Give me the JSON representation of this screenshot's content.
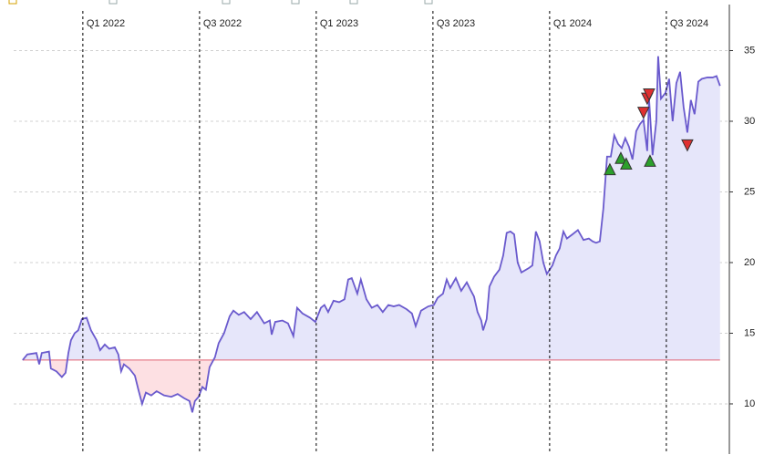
{
  "chart_data": {
    "type": "line",
    "x": [
      2021.742,
      2021.762,
      2021.801,
      2021.813,
      2021.824,
      2021.855,
      2021.863,
      2021.887,
      2021.91,
      2021.926,
      2021.938,
      2021.949,
      2021.965,
      2021.98,
      2021.996,
      2022.016,
      2022.035,
      2022.059,
      2022.074,
      2022.094,
      2022.113,
      2022.137,
      2022.152,
      2022.164,
      2022.176,
      2022.199,
      2022.223,
      2022.238,
      2022.254,
      2022.27,
      2022.293,
      2022.316,
      2022.348,
      2022.379,
      2022.406,
      2022.434,
      2022.457,
      2022.469,
      2022.48,
      2022.496,
      2022.512,
      2022.527,
      2022.543,
      2022.566,
      2022.582,
      2022.605,
      2022.629,
      2022.645,
      2022.668,
      2022.691,
      2022.719,
      2022.746,
      2022.777,
      2022.801,
      2022.809,
      2022.824,
      2022.855,
      2022.879,
      2022.902,
      2022.918,
      2022.941,
      2022.973,
      2022.996,
      2023.02,
      2023.035,
      2023.051,
      2023.074,
      2023.098,
      2023.121,
      2023.137,
      2023.152,
      2023.176,
      2023.191,
      2023.215,
      2023.238,
      2023.262,
      2023.285,
      2023.309,
      2023.332,
      2023.355,
      2023.387,
      2023.41,
      2023.426,
      2023.449,
      2023.48,
      2023.504,
      2023.52,
      2023.543,
      2023.559,
      2023.574,
      2023.598,
      2023.621,
      2023.645,
      2023.66,
      2023.676,
      2023.691,
      2023.707,
      2023.715,
      2023.73,
      2023.742,
      2023.762,
      2023.785,
      2023.801,
      2023.816,
      2023.832,
      2023.848,
      2023.863,
      2023.879,
      2023.91,
      2023.926,
      2023.941,
      2023.957,
      2023.973,
      2023.988,
      2024.012,
      2024.027,
      2024.043,
      2024.059,
      2024.074,
      2024.098,
      2024.121,
      2024.145,
      2024.168,
      2024.184,
      2024.199,
      2024.215,
      2024.23,
      2024.246,
      2024.262,
      2024.277,
      2024.293,
      2024.309,
      2024.324,
      2024.34,
      2024.355,
      2024.371,
      2024.387,
      2024.402,
      2024.418,
      2024.426,
      2024.441,
      2024.457,
      2024.465,
      2024.477,
      2024.496,
      2024.512,
      2024.527,
      2024.543,
      2024.559,
      2024.574,
      2024.59,
      2024.605,
      2024.621,
      2024.637,
      2024.652,
      2024.676,
      2024.699,
      2024.715,
      2024.73
    ],
    "series": [
      {
        "color": "#6a5acd",
        "values": [
          13.1,
          13.5,
          13.6,
          12.8,
          13.6,
          13.7,
          12.5,
          12.3,
          11.9,
          12.2,
          13.6,
          14.5,
          15.0,
          15.2,
          16.0,
          16.1,
          15.2,
          14.5,
          13.8,
          14.2,
          13.9,
          14.0,
          13.5,
          12.3,
          12.8,
          12.5,
          12.0,
          11.0,
          10.0,
          10.8,
          10.6,
          10.9,
          10.6,
          10.5,
          10.7,
          10.4,
          10.2,
          9.4,
          10.2,
          10.5,
          11.2,
          11.0,
          12.6,
          13.3,
          14.3,
          15.0,
          16.2,
          16.6,
          16.3,
          16.5,
          16.0,
          16.5,
          15.7,
          15.9,
          14.9,
          15.8,
          15.9,
          15.7,
          14.8,
          16.8,
          16.4,
          16.1,
          15.8,
          16.8,
          17.0,
          16.5,
          17.3,
          17.2,
          17.4,
          18.8,
          18.9,
          17.8,
          18.8,
          17.4,
          16.8,
          17.0,
          16.5,
          17.0,
          16.9,
          17.0,
          16.7,
          16.4,
          15.5,
          16.6,
          16.9,
          17.0,
          17.5,
          17.8,
          18.8,
          18.2,
          18.9,
          18.0,
          18.6,
          18.1,
          17.6,
          16.5,
          15.9,
          15.2,
          16.0,
          18.3,
          19.0,
          19.5,
          20.5,
          22.1,
          22.2,
          22.0,
          20.0,
          19.3,
          19.6,
          19.8,
          22.2,
          21.5,
          20.0,
          19.2,
          19.8,
          20.5,
          21.0,
          22.2,
          21.7,
          22.0,
          22.3,
          21.6,
          21.7,
          21.5,
          21.4,
          21.5,
          23.8,
          27.5,
          27.5,
          29.0,
          28.4,
          28.1,
          28.8,
          28.2,
          27.3,
          29.3,
          29.8,
          30.1,
          27.9,
          31.6,
          27.6,
          30.0,
          34.6,
          31.6,
          32.0,
          33.0,
          30.0,
          32.7,
          33.5,
          31.0,
          29.2,
          31.5,
          30.5,
          32.8,
          33.0,
          33.1,
          33.1,
          33.2,
          32.5
        ]
      }
    ],
    "baseline": 13.1,
    "baseline_color": "#e06070",
    "fill_above": "#e6e6fa",
    "fill_below": "#fde0e3",
    "buy_signals": {
      "color": "#2ca02c",
      "x": [
        2024.258,
        2024.305,
        2024.328,
        2024.43
      ],
      "values": [
        26.6,
        27.4,
        27.0,
        27.2
      ]
    },
    "sell_signals": {
      "color": "#e03030",
      "x": [
        2024.402,
        2024.418,
        2024.426,
        2024.59
      ],
      "values": [
        30.6,
        31.6,
        31.9,
        28.3
      ]
    },
    "xlim": [
      2021.645,
      2024.77
    ],
    "xticks": [
      {
        "value": 2022.0,
        "label": "Q1 2022"
      },
      {
        "value": 2022.5,
        "label": "Q3 2022"
      },
      {
        "value": 2023.0,
        "label": "Q1 2023"
      },
      {
        "value": 2023.5,
        "label": "Q3 2023"
      },
      {
        "value": 2024.0,
        "label": "Q1 2024"
      },
      {
        "value": 2024.5,
        "label": "Q3 2024"
      }
    ],
    "ylim": [
      6.45,
      38.58
    ],
    "yticks": [
      10,
      15,
      20,
      25,
      30,
      35
    ],
    "grid": true
  }
}
